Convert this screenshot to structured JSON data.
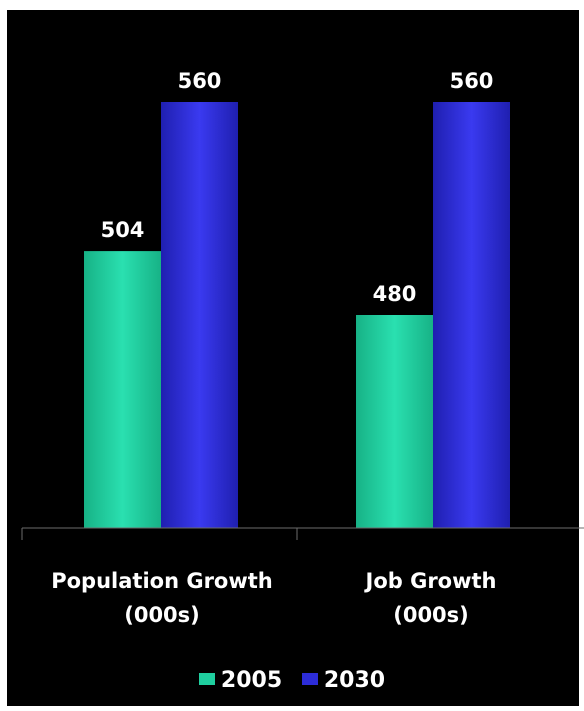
{
  "chart_data": {
    "type": "bar",
    "categories": [
      [
        "Population Growth",
        "(000s)"
      ],
      [
        "Job Growth",
        "(000s)"
      ]
    ],
    "series": [
      {
        "name": "2005",
        "color": "#1fcf9f",
        "values": [
          504,
          480
        ]
      },
      {
        "name": "2030",
        "color": "#2c2cd8",
        "values": [
          560,
          560
        ]
      }
    ],
    "data_labels": [
      [
        "504",
        "480"
      ],
      [
        "560",
        "560"
      ]
    ],
    "ylim": [
      400,
      570
    ],
    "legend_position": "bottom-center",
    "grid": false,
    "background": "#000000"
  }
}
